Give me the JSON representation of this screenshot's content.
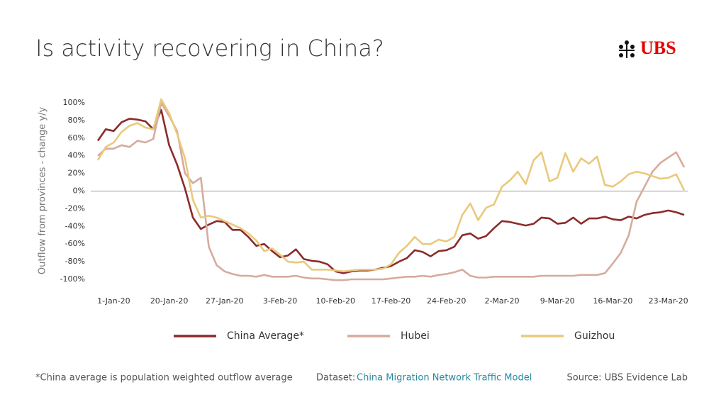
{
  "header": {
    "title": "Is activity recovering in China?",
    "logo": "UBS"
  },
  "chart_data": {
    "type": "line",
    "ylabel": "Outflow from provinces - change y/y",
    "categories": [
      null,
      null,
      "1-Jan-20",
      null,
      null,
      null,
      null,
      null,
      null,
      "20-Jan-20",
      null,
      null,
      null,
      null,
      null,
      null,
      "27-Jan-20",
      null,
      null,
      null,
      null,
      null,
      null,
      "3-Feb-20",
      null,
      null,
      null,
      null,
      null,
      null,
      "10-Feb-20",
      null,
      null,
      null,
      null,
      null,
      null,
      "17-Feb-20",
      null,
      null,
      null,
      null,
      null,
      null,
      "24-Feb-20",
      null,
      null,
      null,
      null,
      null,
      null,
      "2-Mar-20",
      null,
      null,
      null,
      null,
      null,
      null,
      "9-Mar-20",
      null,
      null,
      null,
      null,
      null,
      null,
      "16-Mar-20",
      null,
      null,
      null,
      null,
      null,
      null,
      "23-Mar-20",
      null,
      null
    ],
    "series": [
      {
        "name": "China Average*",
        "color": "#8b2b2b",
        "values": [
          57,
          70,
          68,
          78,
          82,
          81,
          79,
          70,
          92,
          52,
          30,
          3,
          -30,
          -43,
          -38,
          -34,
          -35,
          -44,
          -44,
          -52,
          -62,
          -60,
          -68,
          -75,
          -73,
          -66,
          -77,
          -79,
          -80,
          -83,
          -91,
          -93,
          -91,
          -90,
          -90,
          -89,
          -87,
          -85,
          -80,
          -76,
          -67,
          -69,
          -74,
          -68,
          -67,
          -63,
          -50,
          -48,
          -54,
          -51,
          -42,
          -34,
          -35,
          -37,
          -39,
          -37,
          -30,
          -31,
          -37,
          -36,
          -30,
          -37,
          -31,
          -31,
          -29,
          -32,
          -33,
          -29,
          -31,
          -27,
          -25,
          -24,
          -22,
          -24,
          -27
        ]
      },
      {
        "name": "Hubei",
        "color": "#d6ab9d",
        "values": [
          40,
          48,
          48,
          52,
          50,
          57,
          55,
          59,
          100,
          85,
          68,
          20,
          9,
          15,
          -63,
          -84,
          -91,
          -94,
          -96,
          -96,
          -97,
          -95,
          -97,
          -97,
          -97,
          -96,
          -98,
          -99,
          -99,
          -100,
          -101,
          -101,
          -100,
          -100,
          -100,
          -100,
          -100,
          -99,
          -98,
          -97,
          -97,
          -96,
          -97,
          -95,
          -94,
          -92,
          -89,
          -96,
          -98,
          -98,
          -97,
          -97,
          -97,
          -97,
          -97,
          -97,
          -96,
          -96,
          -96,
          -96,
          -96,
          -95,
          -95,
          -95,
          -93,
          -82,
          -70,
          -50,
          -12,
          5,
          22,
          32,
          38,
          44,
          27
        ]
      },
      {
        "name": "Guizhou",
        "color": "#e9c97c",
        "values": [
          35,
          50,
          55,
          67,
          74,
          77,
          72,
          70,
          104,
          88,
          65,
          37,
          -10,
          -30,
          -28,
          -30,
          -34,
          -38,
          -42,
          -48,
          -56,
          -68,
          -65,
          -72,
          -80,
          -81,
          -80,
          -89,
          -89,
          -89,
          -90,
          -91,
          -90,
          -89,
          -89,
          -89,
          -88,
          -83,
          -70,
          -62,
          -52,
          -60,
          -60,
          -55,
          -57,
          -52,
          -27,
          -14,
          -33,
          -19,
          -15,
          5,
          12,
          22,
          8,
          35,
          44,
          11,
          15,
          43,
          22,
          37,
          31,
          39,
          7,
          5,
          11,
          19,
          22,
          20,
          17,
          14,
          15,
          19,
          1
        ]
      }
    ],
    "ylim": [
      -100,
      100
    ],
    "yticks": [
      {
        "value": -100,
        "label": "-100%"
      },
      {
        "value": -80,
        "label": "-80%"
      },
      {
        "value": -60,
        "label": "-60%"
      },
      {
        "value": -40,
        "label": "-40%"
      },
      {
        "value": -20,
        "label": "-20%"
      },
      {
        "value": 0,
        "label": "0%"
      },
      {
        "value": 20,
        "label": "20%"
      },
      {
        "value": 40,
        "label": "40%"
      },
      {
        "value": 60,
        "label": "60%"
      },
      {
        "value": 80,
        "label": "80%"
      },
      {
        "value": 100,
        "label": "100%"
      }
    ],
    "grid": false
  },
  "footer": {
    "note": "*China average is population weighted outflow average",
    "dataset_label": "Dataset:",
    "dataset_name": "China Migration Network Traffic Model",
    "source": "Source: UBS Evidence Lab"
  }
}
